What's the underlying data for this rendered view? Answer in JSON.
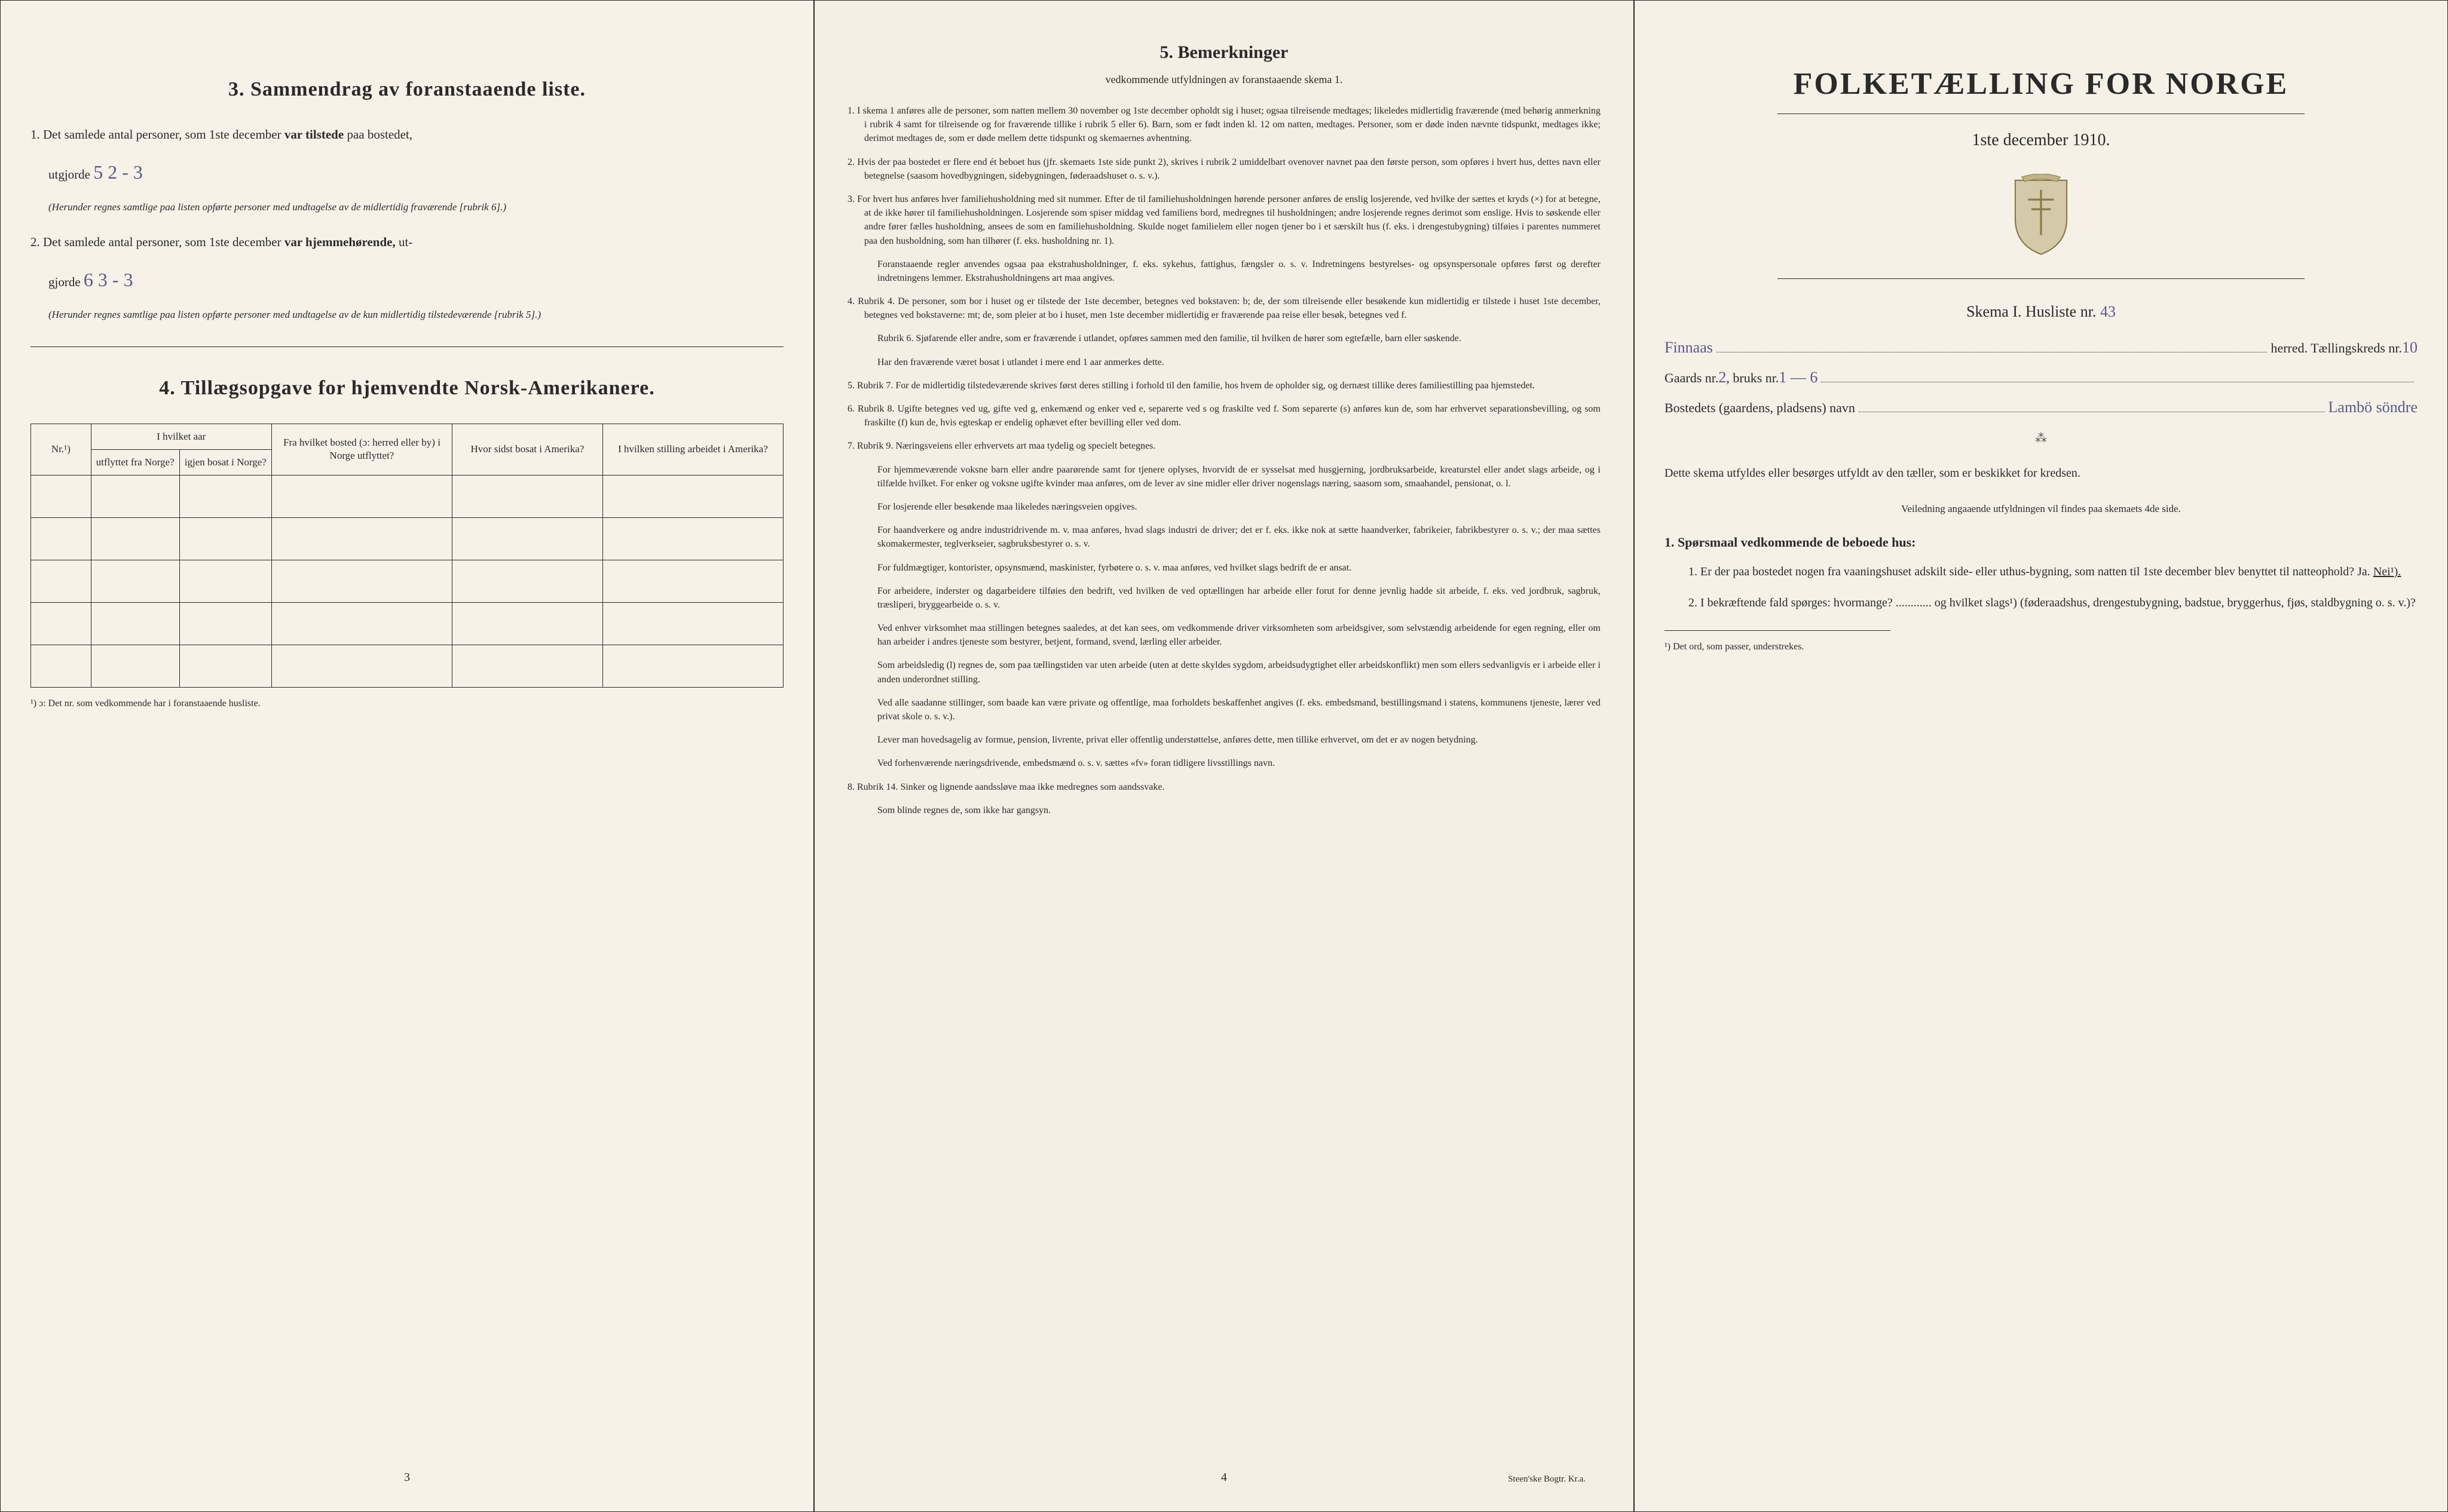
{
  "page_left": {
    "section3_title": "3.  Sammendrag av foranstaaende liste.",
    "item1_prefix": "1.  Det samlede antal personer, som 1ste december",
    "item1_bold": "var tilstede",
    "item1_suffix": "paa bostedet,",
    "item1_line2": "utgjorde",
    "item1_handwritten": "5   2 - 3",
    "item1_note": "(Herunder regnes samtlige paa listen opførte personer med undtagelse av de midlertidig fraværende [rubrik 6].)",
    "item2_prefix": "2.  Det samlede antal personer, som 1ste december",
    "item2_bold": "var hjemmehørende,",
    "item2_suffix": "ut-",
    "item2_line2": "gjorde",
    "item2_handwritten": "6   3 - 3",
    "item2_note": "(Herunder regnes samtlige paa listen opførte personer med undtagelse av de kun midlertidig tilstedeværende [rubrik 5].)",
    "section4_title": "4.  Tillægsopgave for hjemvendte Norsk-Amerikanere.",
    "table_headers": {
      "col1": "Nr.¹)",
      "col2": "I hvilket aar utflyttet fra Norge?",
      "col3": "Fra hvilket bosted (ɔ: herred eller by) i Norge utflyttet?",
      "col3b": "igjen bosat i Norge?",
      "col4": "Hvor sidst bosat i Amerika?",
      "col5": "I hvilken stilling arbeidet i Amerika?"
    },
    "footnote": "¹) ɔ: Det nr. som vedkommende har i foranstaaende husliste.",
    "page_num": "3"
  },
  "page_center": {
    "title": "5.  Bemerkninger",
    "subtitle": "vedkommende utfyldningen av foranstaaende skema 1.",
    "items": [
      "1.  I skema 1 anføres alle de personer, som natten mellem 30 november og 1ste december opholdt sig i huset; ogsaa tilreisende medtages; likeledes midlertidig fraværende (med behørig anmerkning i rubrik 4 samt for tilreisende og for fraværende tillike i rubrik 5 eller 6). Barn, som er født inden kl. 12 om natten, medtages. Personer, som er døde inden nævnte tidspunkt, medtages ikke; derimot medtages de, som er døde mellem dette tidspunkt og skemaernes avhentning.",
      "2.  Hvis der paa bostedet er flere end ét beboet hus (jfr. skemaets 1ste side punkt 2), skrives i rubrik 2 umiddelbart ovenover navnet paa den første person, som opføres i hvert hus, dettes navn eller betegnelse (saasom hovedbygningen, sidebygningen, føderaadshuset o. s. v.).",
      "3.  For hvert hus anføres hver familiehusholdning med sit nummer. Efter de til familiehusholdningen hørende personer anføres de enslig losjerende, ved hvilke der sættes et kryds (×) for at betegne, at de ikke hører til familiehusholdningen. Losjerende som spiser middag ved familiens bord, medregnes til husholdningen; andre losjerende regnes derimot som enslige. Hvis to søskende eller andre fører fælles husholdning, ansees de som en familiehusholdning. Skulde noget familielem eller nogen tjener bo i et særskilt hus (f. eks. i drengestubygning) tilføies i parentes nummeret paa den husholdning, som han tilhører (f. eks. husholdning nr. 1).",
      "     Foranstaaende regler anvendes ogsaa paa ekstrahusholdninger, f. eks. sykehus, fattighus, fængsler o. s. v. Indretningens bestyrelses- og opsynspersonale opføres først og derefter indretningens lemmer. Ekstrahusholdningens art maa angives.",
      "4.  Rubrik 4. De personer, som bor i huset og er tilstede der 1ste december, betegnes ved bokstaven: b; de, der som tilreisende eller besøkende kun midlertidig er tilstede i huset 1ste december, betegnes ved bokstaverne: mt; de, som pleier at bo i huset, men 1ste december midlertidig er fraværende paa reise eller besøk, betegnes ved f.",
      "     Rubrik 6. Sjøfarende eller andre, som er fraværende i utlandet, opføres sammen med den familie, til hvilken de hører som egtefælle, barn eller søskende.",
      "     Har den fraværende været bosat i utlandet i mere end 1 aar anmerkes dette.",
      "5.  Rubrik 7. For de midlertidig tilstedeværende skrives først deres stilling i forhold til den familie, hos hvem de opholder sig, og dernæst tillike deres familiestilling paa hjemstedet.",
      "6.  Rubrik 8. Ugifte betegnes ved ug, gifte ved g, enkemænd og enker ved e, separerte ved s og fraskilte ved f. Som separerte (s) anføres kun de, som har erhvervet separationsbevilling, og som fraskilte (f) kun de, hvis egteskap er endelig ophævet efter bevilling eller ved dom.",
      "7.  Rubrik 9. Næringsveiens eller erhvervets art maa tydelig og specielt betegnes.",
      "     For hjemmeværende voksne barn eller andre paarørende samt for tjenere oplyses, hvorvidt de er sysselsat med husgjerning, jordbruksarbeide, kreaturstel eller andet slags arbeide, og i tilfælde hvilket. For enker og voksne ugifte kvinder maa anføres, om de lever av sine midler eller driver nogenslags næring, saasom som, smaahandel, pensionat, o. l.",
      "     For losjerende eller besøkende maa likeledes næringsveien opgives.",
      "     For haandverkere og andre industridrivende m. v. maa anføres, hvad slags industri de driver; det er f. eks. ikke nok at sætte haandverker, fabrikeier, fabrikbestyrer o. s. v.; der maa sættes skomakermester, teglverkseier, sagbruksbestyrer o. s. v.",
      "     For fuldmægtiger, kontorister, opsynsmænd, maskinister, fyrbøtere o. s. v. maa anføres, ved hvilket slags bedrift de er ansat.",
      "     For arbeidere, inderster og dagarbeidere tilføies den bedrift, ved hvilken de ved optællingen har arbeide eller forut for denne jevnlig hadde sit arbeide, f. eks. ved jordbruk, sagbruk, træsliperi, bryggearbeide o. s. v.",
      "     Ved enhver virksomhet maa stillingen betegnes saaledes, at det kan sees, om vedkommende driver virksomheten som arbeidsgiver, som selvstændig arbeidende for egen regning, eller om han arbeider i andres tjeneste som bestyrer, betjent, formand, svend, lærling eller arbeider.",
      "     Som arbeidsledig (l) regnes de, som paa tællingstiden var uten arbeide (uten at dette skyldes sygdom, arbeidsudygtighet eller arbeidskonflikt) men som ellers sedvanligvis er i arbeide eller i anden underordnet stilling.",
      "     Ved alle saadanne stillinger, som baade kan være private og offentlige, maa forholdets beskaffenhet angives (f. eks. embedsmand, bestillingsmand i statens, kommunens tjeneste, lærer ved privat skole o. s. v.).",
      "     Lever man hovedsagelig av formue, pension, livrente, privat eller offentlig understøttelse, anføres dette, men tillike erhvervet, om det er av nogen betydning.",
      "     Ved forhenværende næringsdrivende, embedsmænd o. s. v. sættes «fv» foran tidligere livsstillings navn.",
      "8.  Rubrik 14. Sinker og lignende aandssløve maa ikke medregnes som aandssvake.",
      "     Som blinde regnes de, som ikke har gangsyn."
    ],
    "page_num": "4",
    "printer": "Steen'ske Bogtr. Kr.a."
  },
  "page_right": {
    "main_title": "FOLKETÆLLING FOR NORGE",
    "date": "1ste december 1910.",
    "skema_label": "Skema I.   Husliste nr.",
    "husliste_nr": "43",
    "herred_hand": "Finnaas",
    "herred_label": "herred.  Tællingskreds nr.",
    "kreds_nr": "10",
    "gaards_label": "Gaards nr.",
    "gaards_nr": "2",
    "bruks_label": ", bruks nr.",
    "bruks_nr": "1 — 6",
    "bosted_label": "Bostedets (gaardens, pladsens) navn",
    "bosted_hand": "Lambö söndre",
    "instruction1": "Dette skema utfyldes eller besørges utfyldt av den tæller, som er beskikket for kredsen.",
    "instruction2": "Veiledning angaaende utfyldningen vil findes paa skemaets 4de side.",
    "q_heading": "1. Spørsmaal vedkommende de beboede hus:",
    "q1": "1.  Er der paa bostedet nogen fra vaaningshuset adskilt side- eller uthus-bygning, som natten til 1ste december blev benyttet til natteophold?   Ja.   ",
    "q1_answer": "Nei¹).",
    "q2": "2.  I bekræftende fald spørges: hvormange? ............ og hvilket slags¹) (føderaadshus, drengestubygning, badstue, bryggerhus, fjøs, staldbygning o. s. v.)?",
    "footnote": "¹) Det ord, som passer, understrekes."
  },
  "colors": {
    "page_bg": "#f4f0e6",
    "text": "#2a2a2a",
    "handwriting": "#5a5a8a",
    "border": "#2a2a2a"
  }
}
